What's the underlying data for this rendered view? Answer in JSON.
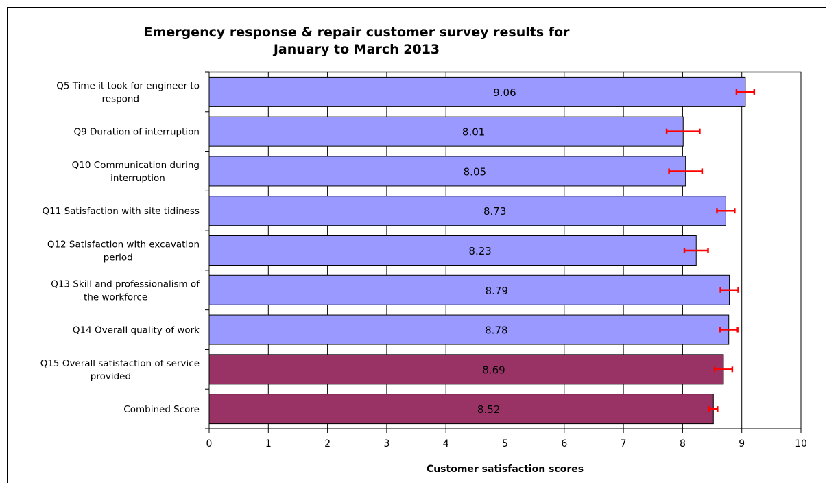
{
  "chart_data": {
    "type": "bar",
    "orientation": "horizontal",
    "title": "Emergency response & repair customer survey results for January to March 2013",
    "title_lines": [
      "Emergency response & repair customer survey results for",
      "January to March 2013"
    ],
    "xlabel": "Customer satisfaction scores",
    "ylabel": "",
    "xlim": [
      0,
      10
    ],
    "x_ticks": [
      "0",
      "1",
      "2",
      "3",
      "4",
      "5",
      "6",
      "7",
      "8",
      "9",
      "10"
    ],
    "grid": "vertical major gridlines",
    "legend": "none",
    "colors": {
      "standard": "#9999ff",
      "highlight": "#993366",
      "error_bar": "#ff0000"
    },
    "categories": [
      {
        "lines": [
          "Q5  Time it took for engineer to",
          "respond"
        ],
        "value": 9.06,
        "label": "9.06",
        "error": 0.15,
        "highlight": false
      },
      {
        "lines": [
          "Q9    Duration of interruption"
        ],
        "value": 8.01,
        "label": "8.01",
        "error": 0.28,
        "highlight": false
      },
      {
        "lines": [
          "Q10  Communication during",
          "interruption"
        ],
        "value": 8.05,
        "label": "8.05",
        "error": 0.28,
        "highlight": false
      },
      {
        "lines": [
          "Q11  Satisfaction with site tidiness"
        ],
        "value": 8.73,
        "label": "8.73",
        "error": 0.15,
        "highlight": false
      },
      {
        "lines": [
          "Q12  Satisfaction with excavation",
          "period"
        ],
        "value": 8.23,
        "label": "8.23",
        "error": 0.2,
        "highlight": false
      },
      {
        "lines": [
          "Q13  Skill and professionalism  of",
          "the workforce"
        ],
        "value": 8.79,
        "label": "8.79",
        "error": 0.15,
        "highlight": false
      },
      {
        "lines": [
          "Q14  Overall quality of work"
        ],
        "value": 8.78,
        "label": "8.78",
        "error": 0.15,
        "highlight": false
      },
      {
        "lines": [
          "Q15  Overall satisfaction of service",
          "provided"
        ],
        "value": 8.69,
        "label": "8.69",
        "error": 0.15,
        "highlight": true
      },
      {
        "lines": [
          "Combined Score"
        ],
        "value": 8.52,
        "label": "8.52",
        "error": 0.07,
        "highlight": true
      }
    ]
  }
}
